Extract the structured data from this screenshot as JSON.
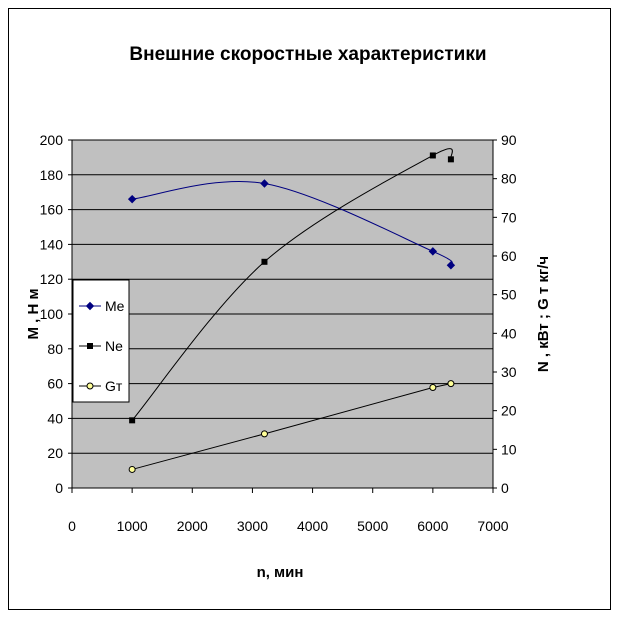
{
  "chart_data": {
    "type": "line",
    "title": "Внешние скоростные характеристики",
    "xlabel": "n, мин",
    "ylabel_left": "М  ,  Н  м",
    "ylabel_right": "N  ,  кВт  ;  G  т   кг/ч",
    "xlim": [
      0,
      7000
    ],
    "ylim_left": [
      0,
      200
    ],
    "ylim_right": [
      0,
      90
    ],
    "x_ticks": [
      "0",
      "1000",
      "2000",
      "3000",
      "4000",
      "5000",
      "6000",
      "7000"
    ],
    "y_left_ticks": [
      "0",
      "20",
      "40",
      "60",
      "80",
      "100",
      "120",
      "140",
      "160",
      "180",
      "200"
    ],
    "y_right_ticks": [
      "0",
      "10",
      "20",
      "30",
      "40",
      "50",
      "60",
      "70",
      "80",
      "90"
    ],
    "grid": "horizontal",
    "plot_background": "#c0c0c0",
    "legend_position": "left",
    "series": [
      {
        "name": "Me",
        "axis": "left",
        "color": "#000080",
        "marker": "diamond",
        "x": [
          1000,
          3200,
          6000,
          6300
        ],
        "y": [
          166,
          175,
          136,
          128
        ]
      },
      {
        "name": "Ne",
        "axis": "right",
        "color": "#000000",
        "marker": "square",
        "x": [
          1000,
          3200,
          6000,
          6300
        ],
        "y": [
          17.5,
          58.5,
          86,
          85
        ]
      },
      {
        "name": "Gт",
        "axis": "right",
        "color": "#000000",
        "marker": "circle",
        "marker_fill": "#ffff99",
        "x": [
          1000,
          3200,
          6000,
          6300
        ],
        "y": [
          4.8,
          14,
          26,
          27
        ]
      }
    ]
  }
}
